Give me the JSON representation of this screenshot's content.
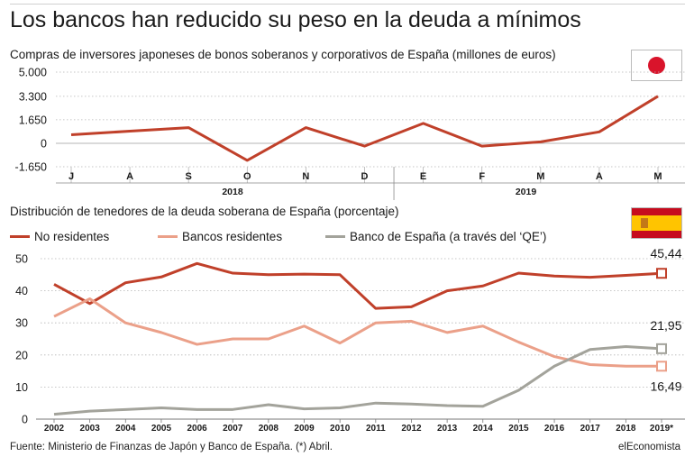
{
  "title": "Los bancos han reducido su peso en la deuda a mínimos",
  "colors": {
    "red": "#c0402a",
    "pink": "#eba089",
    "gray": "#a3a39b",
    "grid": "#b4b4b4",
    "text": "#1a1a1a",
    "japan_red": "#d9142b",
    "spain_red": "#c60b1e",
    "spain_yellow": "#ffc400"
  },
  "footer": {
    "source": "Fuente: Ministerio de Finanzas de Japón y Banco de España. (*) Abril.",
    "brand": "elEconomista"
  },
  "chart_data": [
    {
      "type": "line",
      "title": "Compras de inversores japoneses de bonos soberanos y corporativos de España (millones de euros)",
      "categories": [
        "J",
        "A",
        "S",
        "O",
        "N",
        "D",
        "E",
        "F",
        "M",
        "A",
        "M"
      ],
      "year_labels": [
        "2018",
        "2019"
      ],
      "values": [
        600,
        850,
        1100,
        -1200,
        1100,
        -200,
        1400,
        -200,
        100,
        800,
        3300
      ],
      "yticks": [
        -1650,
        0,
        1650,
        3300,
        5000
      ],
      "ytick_labels": [
        "-1.650",
        "0",
        "1.650",
        "3.300",
        "5.000"
      ],
      "ylim": [
        -1650,
        5000
      ],
      "flag": "japan-flag"
    },
    {
      "type": "line",
      "title": "Distribución de tenedores de la deuda soberana de España (porcentaje)",
      "categories": [
        "2002",
        "2003",
        "2004",
        "2005",
        "2006",
        "2007",
        "2008",
        "2009",
        "2010",
        "2011",
        "2012",
        "2013",
        "2014",
        "2015",
        "2016",
        "2017",
        "2018",
        "2019*"
      ],
      "series": [
        {
          "name": "No residentes",
          "color_key": "red",
          "values": [
            42,
            36,
            42.5,
            44.3,
            48.5,
            45.5,
            45,
            45.2,
            45,
            34.5,
            35,
            40,
            41.5,
            45.5,
            44.6,
            44.2,
            44.8,
            45.44
          ],
          "end_label": "45,44"
        },
        {
          "name": "Bancos residentes",
          "color_key": "pink",
          "values": [
            32,
            37.5,
            30,
            27,
            23.3,
            25,
            25,
            29,
            23.7,
            30,
            30.5,
            27,
            29,
            24,
            19.5,
            17,
            16.5,
            16.49
          ],
          "end_label": "16,49"
        },
        {
          "name": "Banco de España (a través del ‘QE’)",
          "color_key": "gray",
          "values": [
            1.5,
            2.5,
            3,
            3.5,
            3,
            3,
            4.5,
            3.2,
            3.5,
            5,
            4.7,
            4.2,
            4,
            9,
            16.5,
            21.7,
            22.6,
            21.95
          ],
          "end_label": "21,95"
        }
      ],
      "yticks": [
        0,
        10,
        20,
        30,
        40,
        50
      ],
      "ytick_labels": [
        "0",
        "10",
        "20",
        "30",
        "40",
        "50"
      ],
      "ylim": [
        0,
        50
      ],
      "flag": "spain-flag"
    }
  ]
}
